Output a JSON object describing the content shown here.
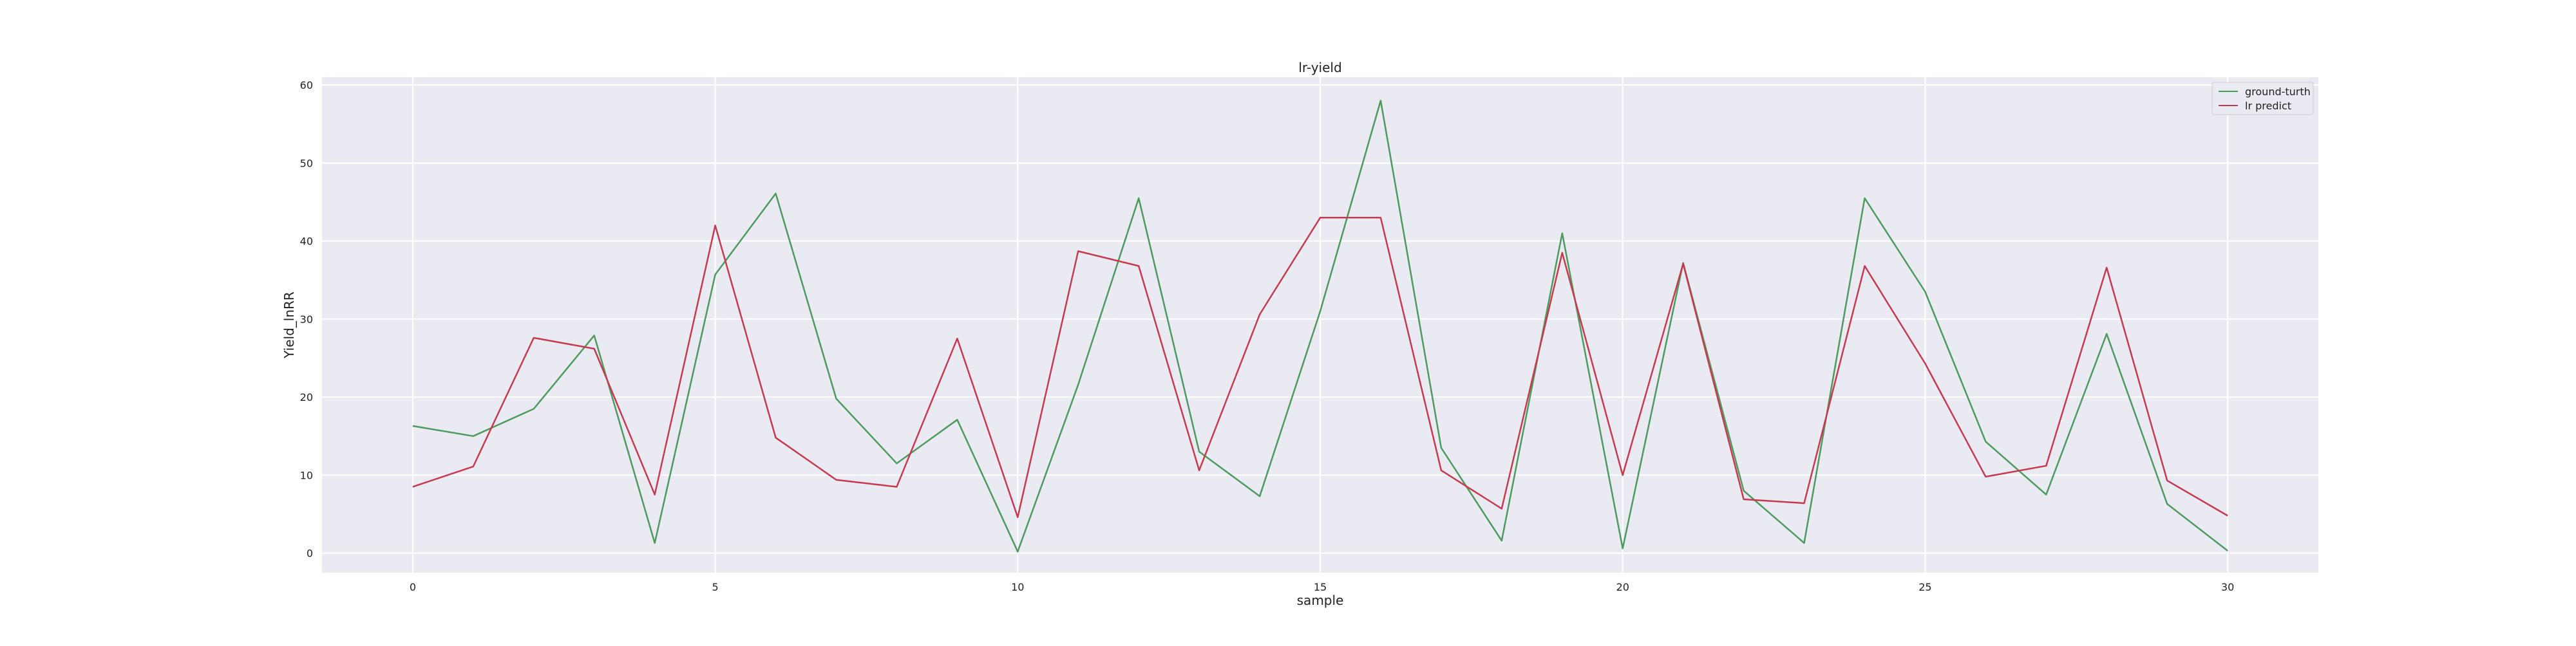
{
  "chart_data": {
    "type": "line",
    "title": "lr-yield",
    "xlabel": "sample",
    "ylabel": "Yield_lnRR",
    "x": [
      0,
      1,
      2,
      3,
      4,
      5,
      6,
      7,
      8,
      9,
      10,
      11,
      12,
      13,
      14,
      15,
      16,
      17,
      18,
      19,
      20,
      21,
      22,
      23,
      24,
      25,
      26,
      27,
      28,
      29,
      30
    ],
    "xticks": [
      0,
      5,
      10,
      15,
      20,
      25,
      30
    ],
    "yticks": [
      0,
      10,
      20,
      30,
      40,
      50,
      60
    ],
    "xlim": [
      -1.5,
      31.5
    ],
    "ylim": [
      -2.5,
      61
    ],
    "grid": true,
    "legend_position": "top-right",
    "background_color": "#eaeaf2",
    "grid_color": "#ffffff",
    "series": [
      {
        "name": "ground-turth",
        "color": "#4c9a5e",
        "values": [
          16.3,
          15.0,
          18.5,
          27.9,
          1.3,
          35.7,
          46.1,
          19.8,
          11.5,
          17.1,
          0.2,
          21.6,
          45.5,
          13.0,
          7.3,
          31.0,
          58.0,
          13.5,
          1.6,
          41.0,
          0.6,
          37.2,
          8.0,
          1.3,
          45.5,
          33.5,
          14.3,
          7.5,
          28.1,
          6.3,
          0.3
        ]
      },
      {
        "name": "lr predict",
        "color": "#c8394f",
        "values": [
          8.5,
          11.1,
          27.6,
          26.2,
          7.5,
          42.0,
          14.8,
          9.4,
          8.5,
          27.5,
          4.6,
          38.7,
          36.8,
          10.6,
          30.6,
          43.0,
          43.0,
          10.6,
          5.7,
          38.5,
          10.0,
          37.1,
          6.9,
          6.4,
          36.8,
          24.3,
          9.8,
          11.2,
          36.6,
          9.3,
          4.8
        ]
      }
    ]
  }
}
